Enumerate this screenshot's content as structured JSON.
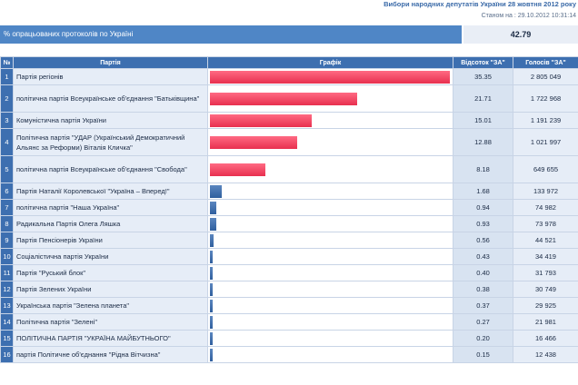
{
  "header": {
    "title": "Вибори народних депутатів України 28 жовтня 2012 року",
    "status": "Станом на : 29.10.2012 10:31:14"
  },
  "processed": {
    "label": "% опрацьованих протоколів по Україні",
    "value": "42.79"
  },
  "table": {
    "columns": [
      "№",
      "Партія",
      "Графік",
      "Відсоток \"ЗА\"",
      "Голосів \"ЗА\""
    ],
    "rows": [
      {
        "num": "1",
        "party": "Партія регіонів",
        "pct": "35.35",
        "votes": "2 805 049"
      },
      {
        "num": "2",
        "party": "політична партія Всеукраїнське об'єднання \"Батьківщина\"",
        "pct": "21.71",
        "votes": "1 722 968"
      },
      {
        "num": "3",
        "party": "Комуністична партія України",
        "pct": "15.01",
        "votes": "1 191 239"
      },
      {
        "num": "4",
        "party": "Політична партія \"УДАР (Український Демократичний Альянс за Реформи) Віталія Кличка\"",
        "pct": "12.88",
        "votes": "1 021 997"
      },
      {
        "num": "5",
        "party": "політична партія Всеукраїнське об'єднання \"Свобода\"",
        "pct": "8.18",
        "votes": "649 655"
      },
      {
        "num": "6",
        "party": "Партія Наталії Королевської \"Україна – Вперед!\"",
        "pct": "1.68",
        "votes": "133 972"
      },
      {
        "num": "7",
        "party": "політична партія \"Наша Україна\"",
        "pct": "0.94",
        "votes": "74 982"
      },
      {
        "num": "8",
        "party": "Радикальна Партія Олега Ляшка",
        "pct": "0.93",
        "votes": "73 978"
      },
      {
        "num": "9",
        "party": "Партія Пенсіонерів України",
        "pct": "0.56",
        "votes": "44 521"
      },
      {
        "num": "10",
        "party": "Соціалістична партія України",
        "pct": "0.43",
        "votes": "34 419"
      },
      {
        "num": "11",
        "party": "Партія \"Руський блок\"",
        "pct": "0.40",
        "votes": "31 793"
      },
      {
        "num": "12",
        "party": "Партія Зелених України",
        "pct": "0.38",
        "votes": "30 749"
      },
      {
        "num": "13",
        "party": "Українська партія \"Зелена планета\"",
        "pct": "0.37",
        "votes": "29 925"
      },
      {
        "num": "14",
        "party": "Політична партія \"Зелені\"",
        "pct": "0.27",
        "votes": "21 981"
      },
      {
        "num": "15",
        "party": "ПОЛІТИЧНА ПАРТІЯ \"УКРАЇНА МАЙБУТНЬОГО\"",
        "pct": "0.20",
        "votes": "16 466"
      },
      {
        "num": "16",
        "party": "партія Політичне об'єднання \"Рідна Вітчизна\"",
        "pct": "0.15",
        "votes": "12 438"
      }
    ]
  },
  "colors": {
    "bar_major": "#e8304f",
    "bar_minor": "#2f5f9e",
    "header_bg": "#3d6fb0"
  }
}
